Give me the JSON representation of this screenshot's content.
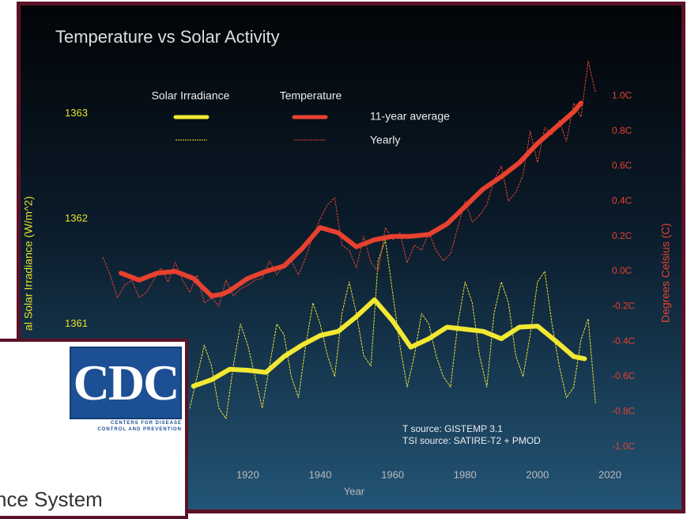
{
  "chart_data": {
    "type": "line",
    "title": "Temperature vs Solar Activity",
    "x_label": "Year",
    "y_label": "al Solar Irradiance (W/m^2)",
    "y2_label": "Degrees Celsius (C)",
    "xlim": [
      1878,
      2026
    ],
    "xticks": [
      1920,
      1940,
      1960,
      1980,
      2000,
      2020
    ],
    "ylim": [
      1359.5,
      1363.5
    ],
    "yticks": [
      1361,
      1362,
      1363
    ],
    "y2lim": [
      -1.2,
      1.2
    ],
    "y2ticks": [
      {
        "value": 1.0,
        "label": "1.0C"
      },
      {
        "value": 0.8,
        "label": "0.8C"
      },
      {
        "value": 0.6,
        "label": "0.6C"
      },
      {
        "value": 0.4,
        "label": "0.4C"
      },
      {
        "value": 0.2,
        "label": "0.2C"
      },
      {
        "value": 0.0,
        "label": "0.0C"
      },
      {
        "value": -0.2,
        "label": "-0.2C"
      },
      {
        "value": -0.4,
        "label": "-0.4C"
      },
      {
        "value": -0.6,
        "label": "-0.6C"
      },
      {
        "value": -0.8,
        "label": "-0.8C"
      },
      {
        "value": -1.0,
        "label": "-1.0C"
      }
    ],
    "grid": false,
    "legend_rows": [
      "11-year average",
      "Yearly"
    ],
    "series": [
      {
        "name": "Solar Irradiance",
        "color": "#f2e832",
        "axis": "y",
        "average": {
          "x": [
            1905,
            1910,
            1915,
            1920,
            1925,
            1930,
            1935,
            1940,
            1945,
            1950,
            1955,
            1960,
            1965,
            1970,
            1975,
            1980,
            1985,
            1990,
            1995,
            2000,
            2005,
            2010,
            2013
          ],
          "values": [
            1360.41,
            1360.47,
            1360.57,
            1360.56,
            1360.54,
            1360.69,
            1360.8,
            1360.89,
            1360.93,
            1361.07,
            1361.23,
            1361.03,
            1360.78,
            1360.86,
            1360.97,
            1360.95,
            1360.93,
            1360.86,
            1360.97,
            1360.98,
            1360.84,
            1360.69,
            1360.67
          ]
        },
        "yearly": {
          "x": [
            1904,
            1906,
            1908,
            1910,
            1912,
            1914,
            1916,
            1918,
            1920,
            1922,
            1924,
            1926,
            1928,
            1930,
            1932,
            1934,
            1936,
            1938,
            1940,
            1942,
            1944,
            1946,
            1948,
            1950,
            1952,
            1954,
            1956,
            1958,
            1960,
            1962,
            1964,
            1966,
            1968,
            1970,
            1972,
            1974,
            1976,
            1978,
            1980,
            1982,
            1984,
            1986,
            1988,
            1990,
            1992,
            1994,
            1996,
            1998,
            2000,
            2002,
            2004,
            2006,
            2008,
            2010,
            2012,
            2014,
            2016
          ],
          "values": [
            1360.2,
            1360.5,
            1360.8,
            1360.6,
            1360.2,
            1360.1,
            1360.6,
            1361.0,
            1360.8,
            1360.5,
            1360.2,
            1360.6,
            1361.0,
            1360.9,
            1360.5,
            1360.3,
            1360.8,
            1361.2,
            1361.0,
            1360.7,
            1360.5,
            1361.1,
            1361.4,
            1361.1,
            1360.7,
            1360.6,
            1361.6,
            1361.8,
            1361.3,
            1360.8,
            1360.4,
            1360.7,
            1361.1,
            1361.0,
            1360.7,
            1360.5,
            1360.4,
            1361.0,
            1361.4,
            1361.2,
            1360.7,
            1360.4,
            1361.1,
            1361.4,
            1361.2,
            1360.7,
            1360.5,
            1360.9,
            1361.4,
            1361.5,
            1361.0,
            1360.6,
            1360.3,
            1360.4,
            1360.85,
            1361.05,
            1360.25
          ]
        }
      },
      {
        "name": "Temperature",
        "color": "#e8412f",
        "axis": "y2",
        "average": {
          "x": [
            1885,
            1890,
            1895,
            1900,
            1905,
            1910,
            1913,
            1915,
            1920,
            1925,
            1930,
            1935,
            1940,
            1945,
            1950,
            1955,
            1960,
            1965,
            1970,
            1975,
            1980,
            1985,
            1990,
            1995,
            2000,
            2005,
            2010,
            2012
          ],
          "values": [
            -0.01,
            -0.05,
            -0.01,
            0.0,
            -0.04,
            -0.14,
            -0.13,
            -0.11,
            -0.04,
            0.0,
            0.03,
            0.13,
            0.25,
            0.22,
            0.14,
            0.18,
            0.2,
            0.2,
            0.21,
            0.27,
            0.37,
            0.47,
            0.54,
            0.62,
            0.73,
            0.82,
            0.91,
            0.96
          ]
        },
        "yearly": {
          "x": [
            1880,
            1882,
            1884,
            1886,
            1888,
            1890,
            1892,
            1894,
            1896,
            1898,
            1900,
            1902,
            1904,
            1906,
            1908,
            1910,
            1912,
            1914,
            1916,
            1918,
            1920,
            1922,
            1924,
            1926,
            1928,
            1930,
            1932,
            1934,
            1936,
            1938,
            1940,
            1942,
            1944,
            1946,
            1948,
            1950,
            1952,
            1954,
            1956,
            1958,
            1960,
            1962,
            1964,
            1966,
            1968,
            1970,
            1972,
            1974,
            1976,
            1978,
            1980,
            1982,
            1984,
            1986,
            1988,
            1990,
            1992,
            1994,
            1996,
            1998,
            2000,
            2002,
            2004,
            2006,
            2008,
            2010,
            2012,
            2014,
            2016
          ],
          "values": [
            0.08,
            -0.02,
            -0.15,
            -0.08,
            -0.05,
            -0.15,
            -0.12,
            -0.05,
            0.02,
            -0.06,
            0.05,
            -0.05,
            -0.12,
            -0.02,
            -0.18,
            -0.15,
            -0.2,
            -0.05,
            -0.14,
            -0.1,
            -0.08,
            -0.05,
            -0.04,
            0.06,
            -0.02,
            0.04,
            0.06,
            -0.02,
            0.08,
            0.2,
            0.3,
            0.38,
            0.42,
            0.15,
            0.12,
            0.02,
            0.2,
            0.05,
            0.0,
            0.25,
            0.18,
            0.22,
            0.05,
            0.15,
            0.12,
            0.22,
            0.12,
            0.06,
            0.1,
            0.25,
            0.4,
            0.28,
            0.32,
            0.38,
            0.52,
            0.6,
            0.4,
            0.45,
            0.55,
            0.8,
            0.62,
            0.82,
            0.78,
            0.86,
            0.74,
            0.96,
            0.88,
            1.2,
            1.02
          ]
        }
      }
    ],
    "annotations": [
      "T source: GISTEMP 3.1",
      "TSI source: SATIRE-T2 + PMOD"
    ]
  },
  "overlay": {
    "logo": "CDC",
    "logo_caption": [
      "CENTERS FOR DISEASE",
      "CONTROL AND PREVENTION"
    ],
    "text": "nce System"
  }
}
